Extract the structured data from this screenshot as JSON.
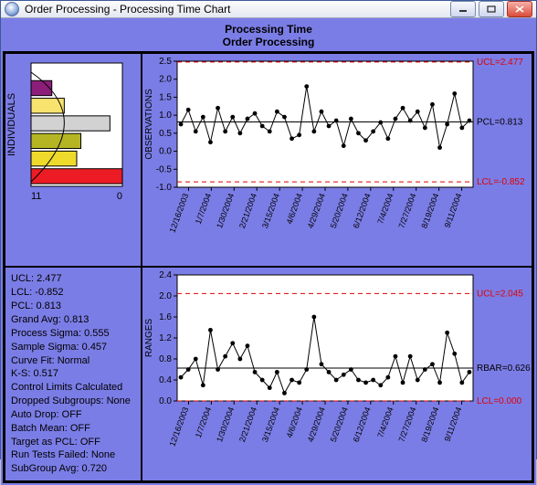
{
  "window": {
    "title": "Order Processing - Processing Time Chart"
  },
  "header": {
    "line1": "Processing Time",
    "line2": "Order Processing"
  },
  "palette": {
    "panel_bg": "#7b7de6",
    "chart_bg": "#ffffff",
    "grid_color": "#c0c0c0",
    "axis_color": "#000000",
    "point_color": "#000000",
    "ucl_color": "#e00000",
    "lcl_color": "#e00000",
    "pcl_color": "#000000"
  },
  "histogram": {
    "axis_label": "INDIVIDUALS",
    "x_range": [
      11,
      0
    ],
    "bars": [
      {
        "y": 0,
        "len": 11,
        "color": "#ed1c24"
      },
      {
        "y": 1,
        "len": 5.5,
        "color": "#edda2a"
      },
      {
        "y": 2,
        "len": 6,
        "color": "#b5b524"
      },
      {
        "y": 3,
        "len": 9.5,
        "color": "#d2d2d2"
      },
      {
        "y": 4,
        "len": 4,
        "color": "#f7e36e"
      },
      {
        "y": 5,
        "len": 2.5,
        "color": "#8c1e7a"
      }
    ],
    "curve_width": 8
  },
  "individuals_chart": {
    "ylabel": "OBSERVATIONS",
    "ylim": [
      -1.0,
      2.5
    ],
    "ytick_step": 0.5,
    "ucl": 2.477,
    "ucl_label": "UCL=2.477",
    "lcl": -0.852,
    "lcl_label": "LCL=-0.852",
    "pcl": 0.813,
    "pcl_label": "PCL=0.813",
    "x_labels": [
      "12/16/2003",
      "1/7/2004",
      "1/30/2004",
      "2/21/2004",
      "3/15/2004",
      "4/6/2004",
      "4/29/2004",
      "5/20/2004",
      "6/12/2004",
      "7/4/2004",
      "7/27/2004",
      "8/19/2004",
      "9/11/2004"
    ],
    "values": [
      0.75,
      1.15,
      0.55,
      0.95,
      0.25,
      1.2,
      0.55,
      0.95,
      0.5,
      0.9,
      1.05,
      0.7,
      0.55,
      1.1,
      0.95,
      0.35,
      0.45,
      1.8,
      0.55,
      1.1,
      0.7,
      0.85,
      0.15,
      0.9,
      0.5,
      0.3,
      0.55,
      0.8,
      0.35,
      0.9,
      1.2,
      0.85,
      1.1,
      0.65,
      1.3,
      0.1,
      0.75,
      1.6,
      0.65,
      0.85
    ]
  },
  "range_chart": {
    "ylabel": "RANGES",
    "ylim": [
      0.0,
      2.4
    ],
    "ytick_step": 0.4,
    "ucl": 2.045,
    "ucl_label": "UCL=2.045",
    "lcl": 0.0,
    "lcl_label": "LCL=0.000",
    "rbar": 0.626,
    "rbar_label": "RBAR=0.626",
    "x_labels": [
      "12/16/2003",
      "1/7/2004",
      "1/30/2004",
      "2/21/2004",
      "3/15/2004",
      "4/6/2004",
      "4/29/2004",
      "5/20/2004",
      "6/12/2004",
      "7/4/2004",
      "7/27/2004",
      "8/19/2004",
      "9/11/2004"
    ],
    "values": [
      0.45,
      0.6,
      0.8,
      0.3,
      1.35,
      0.6,
      0.85,
      1.1,
      0.8,
      1.05,
      0.55,
      0.4,
      0.25,
      0.55,
      0.15,
      0.4,
      0.35,
      0.6,
      1.6,
      0.7,
      0.55,
      0.4,
      0.5,
      0.6,
      0.4,
      0.35,
      0.4,
      0.3,
      0.45,
      0.85,
      0.35,
      0.85,
      0.4,
      0.6,
      0.7,
      0.35,
      1.3,
      0.9,
      0.35,
      0.55
    ]
  },
  "stats": [
    "UCL: 2.477",
    "LCL: -0.852",
    "PCL: 0.813",
    "Grand Avg: 0.813",
    "Process Sigma: 0.555",
    "Sample Sigma: 0.457",
    "Curve Fit: Normal",
    "K-S: 0.517",
    "Control Limits Calculated",
    "Dropped Subgroups: None",
    "Auto Drop: OFF",
    "Batch Mean: OFF",
    "Target as PCL: OFF",
    "Run Tests Failed: None",
    "SubGroup Avg: 0.720"
  ]
}
